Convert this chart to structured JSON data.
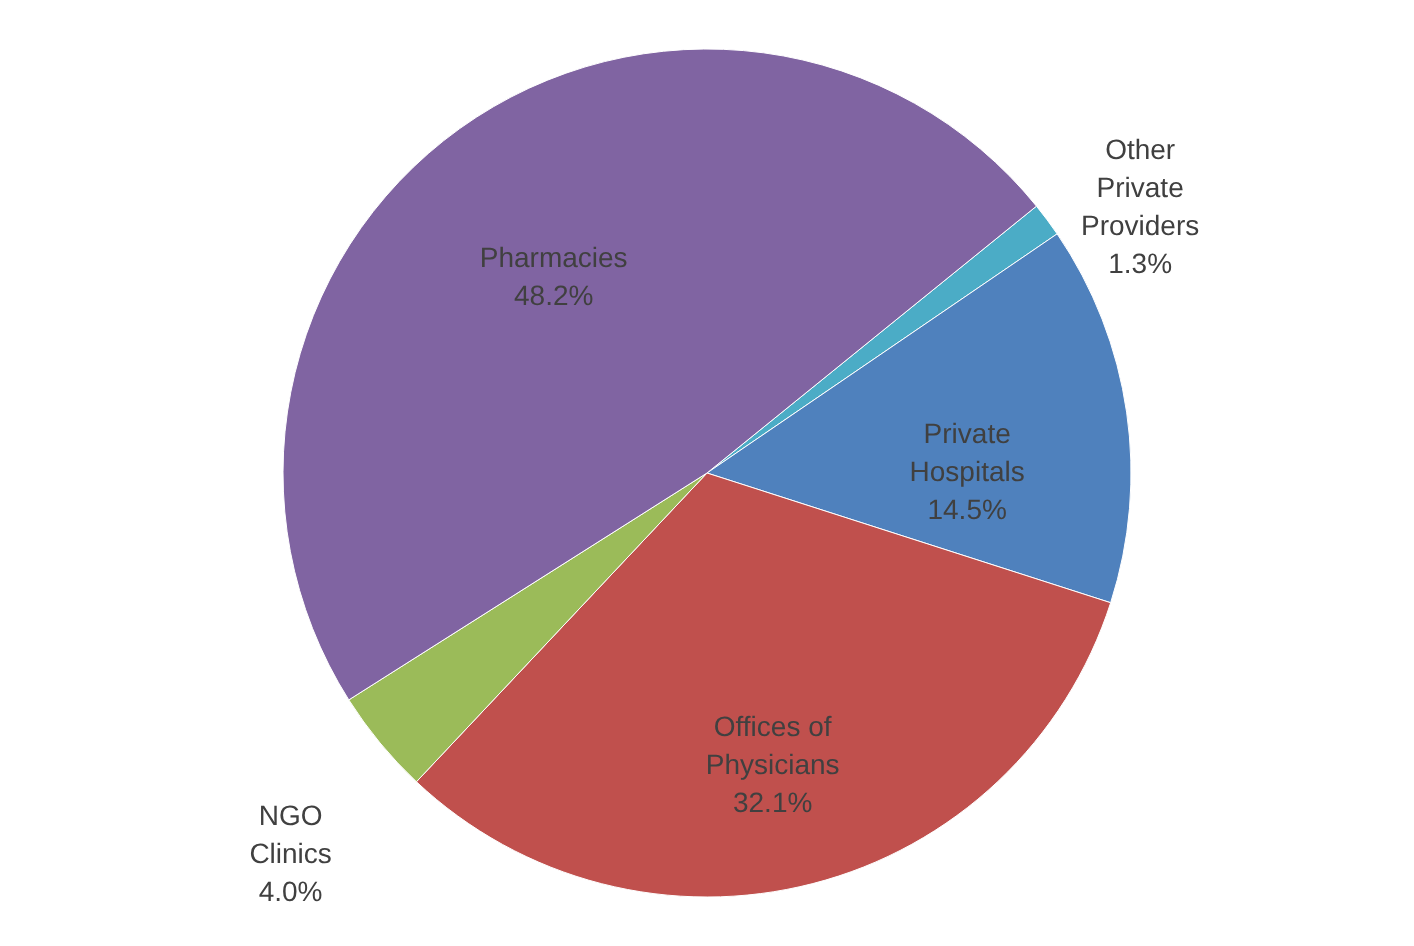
{
  "chart_data": {
    "type": "pie",
    "categories": [
      "Other Private Providers",
      "Private Hospitals",
      "Offices of Physicians",
      "NGO Clinics",
      "Pharmacies"
    ],
    "values": [
      1.3,
      14.5,
      32.1,
      4.0,
      48.2
    ],
    "value_labels": [
      "1.3%",
      "14.5%",
      "32.1%",
      "4.0%",
      "48.2%"
    ],
    "colors": [
      "#4bacc6",
      "#4f81bd",
      "#c0504d",
      "#9bbb59",
      "#8064a2"
    ]
  }
}
